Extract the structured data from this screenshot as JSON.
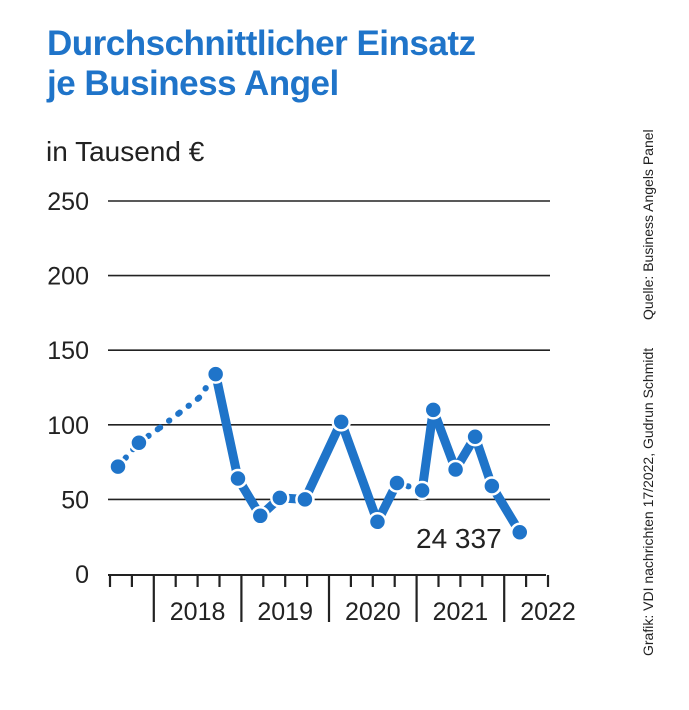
{
  "header": {
    "title_line1": "Durchschnittlicher Einsatz",
    "title_line2": "je Business Angel",
    "unit": "in Tausend €"
  },
  "credits": {
    "source": "Quelle: Business Angels Panel",
    "graphic": "Grafik: VDI nachrichten 17/2022, Gudrun Schmidt"
  },
  "colors": {
    "line": "#1f74c9",
    "grid": "#222222",
    "title": "#1f74c9"
  },
  "chart_data": {
    "type": "line",
    "title": "Durchschnittlicher Einsatz je Business Angel",
    "ylabel": "in Tausend €",
    "ylim": [
      0,
      250
    ],
    "yticks": [
      0,
      50,
      100,
      150,
      200,
      250
    ],
    "year_labels": [
      "2018",
      "2019",
      "2020",
      "2021",
      "2022"
    ],
    "x_quarters": [
      "2017-Q2",
      "2017-Q3",
      "2017-Q4",
      "2018-Q1",
      "2018-Q2",
      "2018-Q3",
      "2018-Q4",
      "2019-Q1",
      "2019-Q2",
      "2019-Q3",
      "2019-Q4",
      "2020-Q1",
      "2020-Q2",
      "2020-Q3",
      "2020-Q4",
      "2021-Q1",
      "2021-Q2",
      "2021-Q3",
      "2021-Q4",
      "2022-Q1"
    ],
    "series": [
      {
        "values": [
          72,
          88,
          98,
          108,
          118,
          134,
          64,
          39,
          51,
          50,
          102,
          35,
          61,
          56,
          110,
          70,
          92,
          59,
          28
        ],
        "x_index": [
          0,
          0.75,
          1.5,
          2.2,
          2.9,
          3.5,
          4.3,
          5.1,
          5.8,
          6.7,
          8.0,
          9.3,
          10.0,
          10.9,
          11.3,
          12.1,
          12.8,
          13.4,
          14.4
        ],
        "points_marked": [
          true,
          true,
          false,
          false,
          false,
          true,
          true,
          true,
          true,
          true,
          true,
          true,
          true,
          true,
          true,
          true,
          true,
          true,
          true
        ],
        "dotted_until_index": 5,
        "dotted_segment_between": [
          12,
          13
        ]
      }
    ],
    "annotations": [
      {
        "text": "24 337"
      }
    ],
    "grid": true
  }
}
